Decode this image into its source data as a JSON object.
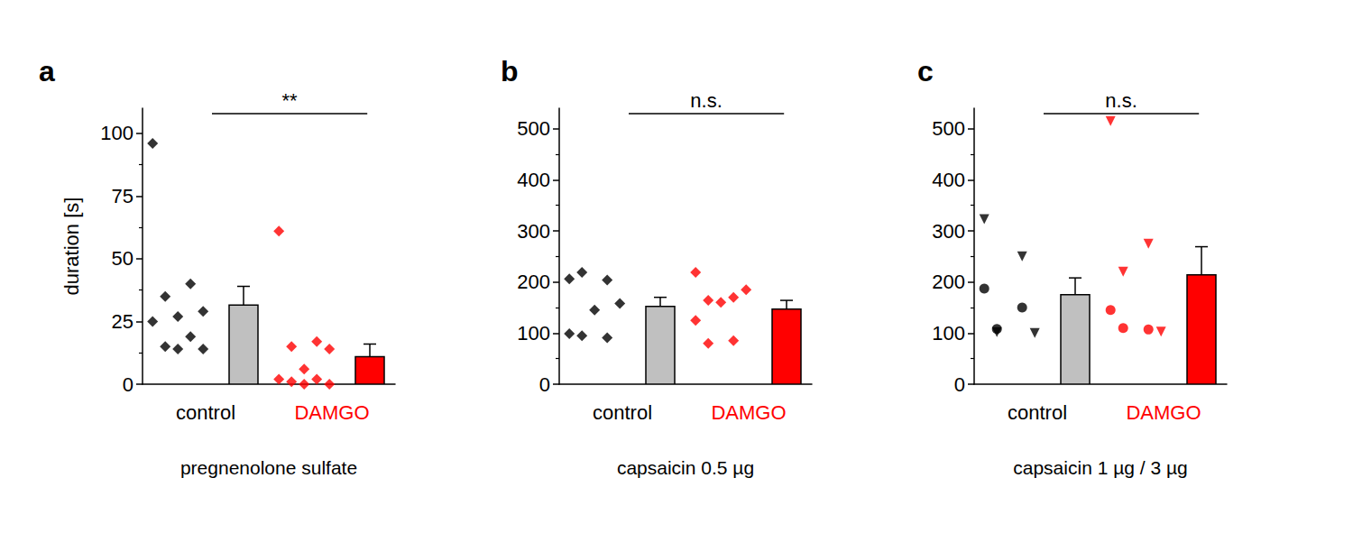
{
  "chart_data": [
    {
      "type": "bar",
      "title": "a",
      "x_label": "pregnenolone sulfate",
      "y_label": "duration [s]",
      "annotation": "**",
      "categories": [
        "control",
        "DAMGO"
      ],
      "ylim": [
        0,
        110
      ],
      "yticks": [
        0,
        25,
        50,
        75,
        100
      ],
      "series": [
        {
          "type": "bar",
          "colors": [
            "#c0c0c0",
            "#ff0000"
          ],
          "values": [
            31.5,
            11
          ],
          "errors": [
            7.5,
            5
          ]
        },
        {
          "type": "scatter",
          "marker": "diamond",
          "colors": [
            "#000000",
            "#ff0000"
          ],
          "values": [
            [
              96,
              40,
              35,
              29,
              27,
              25,
              19,
              15,
              14,
              14
            ],
            [
              61,
              17,
              15,
              14,
              6,
              2,
              2,
              1,
              0,
              0
            ]
          ]
        }
      ]
    },
    {
      "type": "bar",
      "title": "b",
      "x_label": "capsaicin 0.5 µg",
      "annotation": "n.s.",
      "categories": [
        "control",
        "DAMGO"
      ],
      "ylim": [
        0,
        540
      ],
      "yticks": [
        0,
        100,
        200,
        300,
        400,
        500
      ],
      "series": [
        {
          "type": "bar",
          "colors": [
            "#c0c0c0",
            "#ff0000"
          ],
          "values": [
            152,
            147
          ],
          "errors": [
            18,
            17
          ]
        },
        {
          "type": "scatter",
          "marker": "diamond",
          "colors": [
            "#000000",
            "#ff0000"
          ],
          "values": [
            [
              206,
              204,
              219,
              158,
              145,
              99,
              91,
              95
            ],
            [
              219,
              170,
              164,
              185,
              160,
              125,
              85,
              80
            ]
          ]
        }
      ]
    },
    {
      "type": "bar",
      "title": "c",
      "x_label": "capsaicin 1 µg / 3 µg",
      "annotation": "n.s.",
      "categories": [
        "control",
        "DAMGO"
      ],
      "ylim": [
        0,
        540
      ],
      "yticks": [
        0,
        100,
        200,
        300,
        400,
        500
      ],
      "series": [
        {
          "type": "bar",
          "colors": [
            "#c0c0c0",
            "#ff0000"
          ],
          "values": [
            175,
            214
          ],
          "errors": [
            33,
            55
          ]
        },
        {
          "type": "scatter",
          "marker": "triangle_down",
          "colors": [
            "#000000",
            "#ff0000"
          ],
          "values": [
            [
              323,
              250,
              102,
              100
            ],
            [
              515,
              275,
              220,
              103
            ]
          ]
        },
        {
          "type": "scatter",
          "marker": "circle",
          "colors": [
            "#000000",
            "#ff0000"
          ],
          "values": [
            [
              187,
              150,
              108
            ],
            [
              145,
              107,
              110
            ]
          ]
        }
      ]
    }
  ]
}
